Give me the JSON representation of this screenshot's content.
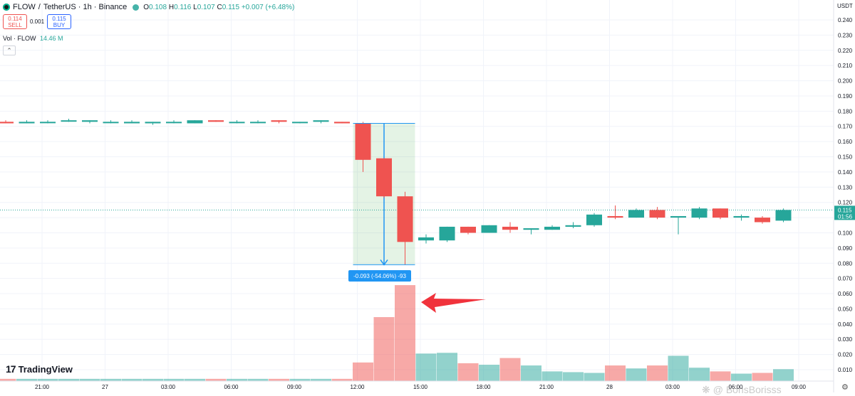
{
  "header": {
    "symbol": "FLOW",
    "separator": "/",
    "quote": "TetherUS · 1h · Binance",
    "ohlc": {
      "o": "0.108",
      "h": "0.116",
      "l": "0.107",
      "c": "0.115",
      "change": "+0.007 (+6.48%)"
    }
  },
  "trade": {
    "sell_price": "0.114",
    "sell_label": "SELL",
    "spread": "0.001",
    "buy_price": "0.115",
    "buy_label": "BUY"
  },
  "volume_indicator": {
    "label": "Vol · FLOW",
    "value": "14.46 M"
  },
  "currency_label": "USDT",
  "brand": "TradingView",
  "watermark": "@ BorisBorisss",
  "measure_label": "-0.093 (-54.06%) -93",
  "colors": {
    "up": "#26a69a",
    "down": "#ef5350",
    "measure": "#2196f3",
    "arrow": "#f0323c"
  },
  "chart_data": {
    "type": "candlestick",
    "title": "FLOW / TetherUS · 1h · Binance",
    "y_ticks": [
      "0.240",
      "0.230",
      "0.220",
      "0.210",
      "0.200",
      "0.190",
      "0.180",
      "0.170",
      "0.160",
      "0.150",
      "0.140",
      "0.130",
      "0.120",
      "0.110",
      "0.100",
      "0.090",
      "0.080",
      "0.070",
      "0.060",
      "0.050",
      "0.040",
      "0.030",
      "0.020",
      "0.010"
    ],
    "ylim": [
      0.005,
      0.245
    ],
    "x_ticks": [
      "21:00",
      "27",
      "03:00",
      "06:00",
      "09:00",
      "12:00",
      "15:00",
      "18:00",
      "21:00",
      "28",
      "03:00",
      "06:00",
      "09:00"
    ],
    "last_price_label": "0.115",
    "last_price_timer": "01:56",
    "last_price": 0.115,
    "candles": [
      {
        "o": 0.173,
        "h": 0.174,
        "l": 0.172,
        "c": 0.172
      },
      {
        "o": 0.172,
        "h": 0.174,
        "l": 0.172,
        "c": 0.173
      },
      {
        "o": 0.173,
        "h": 0.174,
        "l": 0.172,
        "c": 0.173
      },
      {
        "o": 0.174,
        "h": 0.175,
        "l": 0.173,
        "c": 0.174
      },
      {
        "o": 0.173,
        "h": 0.174,
        "l": 0.172,
        "c": 0.174
      },
      {
        "o": 0.173,
        "h": 0.174,
        "l": 0.172,
        "c": 0.173
      },
      {
        "o": 0.172,
        "h": 0.174,
        "l": 0.172,
        "c": 0.173
      },
      {
        "o": 0.172,
        "h": 0.173,
        "l": 0.171,
        "c": 0.173
      },
      {
        "o": 0.173,
        "h": 0.174,
        "l": 0.172,
        "c": 0.173
      },
      {
        "o": 0.172,
        "h": 0.174,
        "l": 0.172,
        "c": 0.174
      },
      {
        "o": 0.174,
        "h": 0.174,
        "l": 0.173,
        "c": 0.173
      },
      {
        "o": 0.173,
        "h": 0.174,
        "l": 0.172,
        "c": 0.173
      },
      {
        "o": 0.173,
        "h": 0.174,
        "l": 0.172,
        "c": 0.173
      },
      {
        "o": 0.174,
        "h": 0.174,
        "l": 0.172,
        "c": 0.173
      },
      {
        "o": 0.173,
        "h": 0.173,
        "l": 0.172,
        "c": 0.173
      },
      {
        "o": 0.173,
        "h": 0.174,
        "l": 0.172,
        "c": 0.174
      },
      {
        "o": 0.173,
        "h": 0.173,
        "l": 0.172,
        "c": 0.172
      },
      {
        "o": 0.172,
        "h": 0.173,
        "l": 0.14,
        "c": 0.148
      },
      {
        "o": 0.149,
        "h": 0.149,
        "l": 0.123,
        "c": 0.124
      },
      {
        "o": 0.124,
        "h": 0.127,
        "l": 0.079,
        "c": 0.094
      },
      {
        "o": 0.095,
        "h": 0.099,
        "l": 0.093,
        "c": 0.097
      },
      {
        "o": 0.095,
        "h": 0.104,
        "l": 0.094,
        "c": 0.104
      },
      {
        "o": 0.104,
        "h": 0.104,
        "l": 0.099,
        "c": 0.1
      },
      {
        "o": 0.1,
        "h": 0.105,
        "l": 0.1,
        "c": 0.105
      },
      {
        "o": 0.104,
        "h": 0.107,
        "l": 0.1,
        "c": 0.102
      },
      {
        "o": 0.102,
        "h": 0.103,
        "l": 0.099,
        "c": 0.103
      },
      {
        "o": 0.102,
        "h": 0.105,
        "l": 0.102,
        "c": 0.104
      },
      {
        "o": 0.104,
        "h": 0.107,
        "l": 0.103,
        "c": 0.105
      },
      {
        "o": 0.105,
        "h": 0.113,
        "l": 0.104,
        "c": 0.112
      },
      {
        "o": 0.111,
        "h": 0.118,
        "l": 0.109,
        "c": 0.11
      },
      {
        "o": 0.11,
        "h": 0.116,
        "l": 0.11,
        "c": 0.115
      },
      {
        "o": 0.115,
        "h": 0.117,
        "l": 0.109,
        "c": 0.11
      },
      {
        "o": 0.11,
        "h": 0.111,
        "l": 0.099,
        "c": 0.111
      },
      {
        "o": 0.11,
        "h": 0.117,
        "l": 0.109,
        "c": 0.116
      },
      {
        "o": 0.116,
        "h": 0.116,
        "l": 0.109,
        "c": 0.11
      },
      {
        "o": 0.11,
        "h": 0.112,
        "l": 0.108,
        "c": 0.111
      },
      {
        "o": 0.11,
        "h": 0.111,
        "l": 0.106,
        "c": 0.107
      },
      {
        "o": 0.108,
        "h": 0.116,
        "l": 0.107,
        "c": 0.115
      }
    ],
    "volume_series_pixel_scale_note": "",
    "volumes": [
      0.3,
      0.3,
      0.3,
      0.3,
      0.3,
      0.3,
      0.3,
      0.3,
      0.3,
      0.3,
      0.3,
      0.3,
      0.3,
      0.3,
      0.3,
      0.3,
      0.3,
      2.5,
      8.6,
      12.9,
      3.7,
      3.8,
      2.4,
      2.2,
      3.1,
      2.1,
      1.3,
      1.2,
      1.1,
      2.1,
      1.7,
      2.1,
      3.4,
      1.8,
      1.3,
      1.0,
      1.1,
      1.6
    ],
    "volume_ylim": [
      0,
      14
    ]
  }
}
